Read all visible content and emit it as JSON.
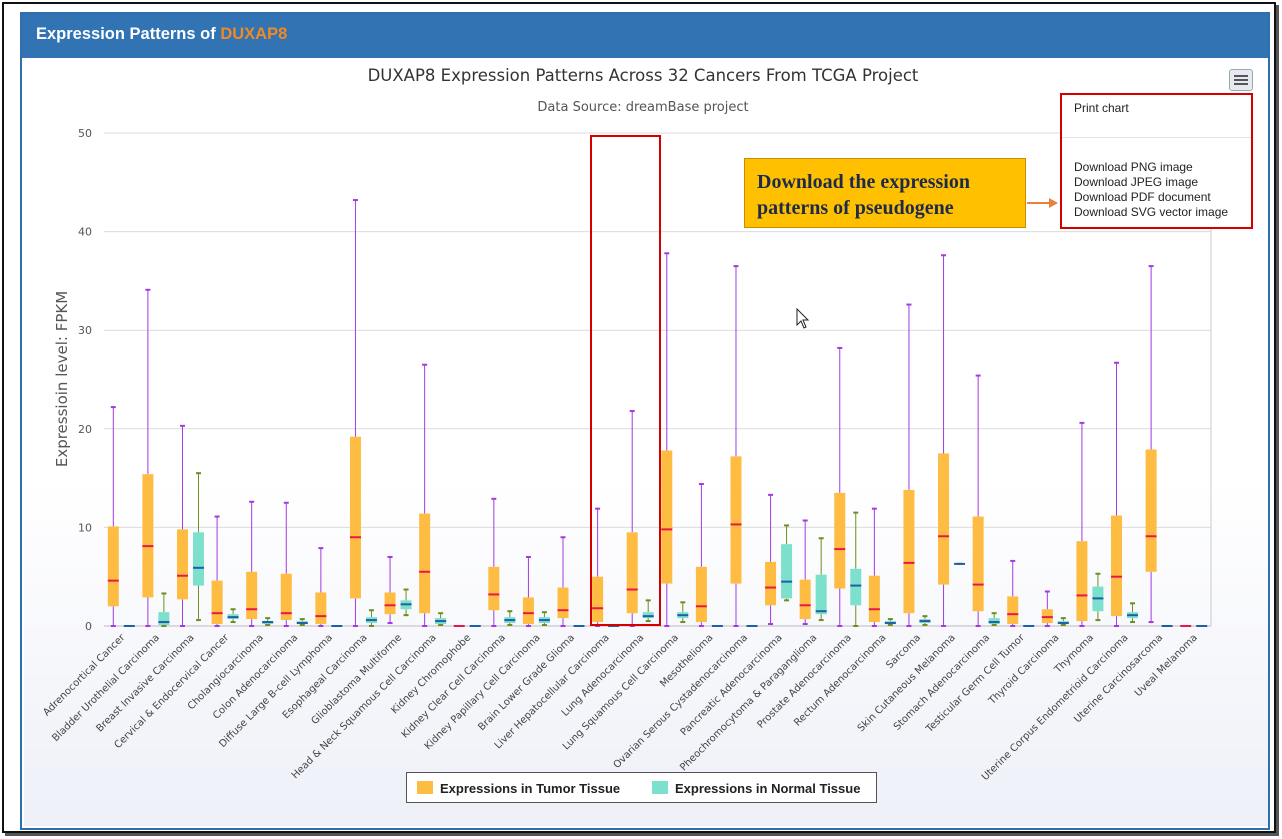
{
  "panel": {
    "title_prefix": "Expression Patterns of ",
    "gene": "DUXAP8"
  },
  "colors": {
    "header": "#3173b3",
    "tumor": "#ffbc42",
    "normal": "#7de0cc",
    "whisker": "#a23ae0",
    "tumor_median": "#e8174a",
    "normal_median": "#1f5fa8",
    "highlight": "#d40000",
    "callout": "#ffc000"
  },
  "menu": {
    "icon": "hamburger-menu-icon",
    "print": "Print chart",
    "png": "Download PNG image",
    "jpeg": "Download JPEG image",
    "pdf": "Download PDF document",
    "svg": "Download SVG vector image"
  },
  "callout": {
    "line1": "Download the expression",
    "line2": "patterns of pseudogene"
  },
  "chart_data": {
    "type": "boxplot",
    "title": "DUXAP8 Expression Patterns Across 32 Cancers From TCGA Project",
    "subtitle": "Data Source: dreamBase project",
    "ylabel": "Expressioin level: FPKM",
    "ylim": [
      0,
      50
    ],
    "yticks": [
      0,
      10,
      20,
      30,
      40,
      50
    ],
    "grid": true,
    "legend_placement": "bottom",
    "highlighted_category": "Lung Adenocarcinoma",
    "categories": [
      "Adrenocortical Cancer",
      "Bladder Urothelial Carcinoma",
      "Breast Invasive Carcinoma",
      "Cervical & Endocervical Cancer",
      "Cholangiocarcinoma",
      "Colon Adenocarcinoma",
      "Diffuse Large B-cell Lymphoma",
      "Esophageal Carcinoma",
      "Glioblastoma Multiforme",
      "Head & Neck Squamous Cell Carcinoma",
      "Kidney Chromophobe",
      "Kidney Clear Cell Carcinoma",
      "Kidney Papillary Cell Carcinoma",
      "Brain Lower Grade Glioma",
      "Liver Hepatocellular Carcinoma",
      "Lung Adenocarcinoma",
      "Lung Squamous Cell Carcinoma",
      "Mesothelioma",
      "Ovarian Serous Cystadenocarcinoma",
      "Pancreatic Adenocarcinoma",
      "Pheochromocytoma & Paraganglioma",
      "Prostate Adenocarcinoma",
      "Rectum Adenocarcinoma",
      "Sarcoma",
      "Skin Cutaneous Melanoma",
      "Stomach Adenocarcinoma",
      "Testicular Germ Cell Tumor",
      "Thyroid Carcinoma",
      "Thymoma",
      "Uterine Corpus Endometrioid Carcinoma",
      "Uterine Carcinosarcoma",
      "Uveal Melanoma"
    ],
    "series": [
      {
        "name": "Expressions in Tumor Tissue",
        "boxes": [
          [
            0,
            2,
            4.6,
            10.1,
            22.2
          ],
          [
            0,
            2.9,
            8.1,
            15.4,
            34.1
          ],
          [
            0,
            2.7,
            5.1,
            9.8,
            20.3
          ],
          [
            0,
            0.2,
            1.3,
            4.6,
            11.1
          ],
          [
            0,
            0.7,
            1.7,
            5.5,
            12.6
          ],
          [
            0,
            0.6,
            1.3,
            5.3,
            12.5
          ],
          [
            0,
            0.2,
            1,
            3.4,
            7.9
          ],
          [
            0,
            2.8,
            9,
            19.2,
            43.2
          ],
          [
            0.3,
            1.2,
            2.1,
            3.4,
            7
          ],
          [
            0,
            1.3,
            5.5,
            11.4,
            26.5
          ],
          [
            0,
            0,
            0,
            0,
            0
          ],
          [
            0,
            1.6,
            3.2,
            6,
            12.9
          ],
          [
            0,
            0.2,
            1.3,
            2.9,
            7
          ],
          [
            0,
            0.8,
            1.6,
            3.9,
            9
          ],
          [
            0,
            0.4,
            1.8,
            5,
            11.9
          ],
          [
            0,
            1.3,
            3.7,
            9.5,
            21.8
          ],
          [
            0,
            4.3,
            9.8,
            17.8,
            37.8
          ],
          [
            0,
            0.4,
            2,
            6,
            14.4
          ],
          [
            0,
            4.3,
            10.3,
            17.2,
            36.5
          ],
          [
            0.2,
            2.1,
            3.9,
            6.5,
            13.3
          ],
          [
            0.2,
            0.7,
            2.1,
            4.7,
            10.7
          ],
          [
            0,
            3.8,
            7.8,
            13.5,
            28.2
          ],
          [
            0,
            0.4,
            1.7,
            5.1,
            11.9
          ],
          [
            0,
            1.3,
            6.4,
            13.8,
            32.6
          ],
          [
            0,
            4.2,
            9.1,
            17.5,
            37.6
          ],
          [
            0,
            1.5,
            4.2,
            11.1,
            25.4
          ],
          [
            0,
            0.2,
            1.2,
            3,
            6.6
          ],
          [
            0,
            0.3,
            0.9,
            1.7,
            3.5
          ],
          [
            0,
            0.5,
            3.1,
            8.6,
            20.6
          ],
          [
            0,
            1,
            5,
            11.2,
            26.7
          ],
          [
            0.4,
            5.5,
            9.1,
            17.9,
            36.5
          ],
          [
            0,
            0,
            0,
            0,
            0
          ]
        ]
      },
      {
        "name": "Expressions in Normal Tissue",
        "boxes": [
          [
            0,
            0,
            0,
            0,
            0
          ],
          [
            0,
            0.1,
            0.4,
            1.4,
            3.3
          ],
          [
            0.6,
            4.1,
            5.9,
            9.5,
            15.5
          ],
          [
            0.4,
            0.7,
            0.9,
            1.2,
            1.7
          ],
          [
            0.1,
            0.2,
            0.4,
            0.5,
            0.8
          ],
          [
            0.1,
            0.2,
            0.3,
            0.5,
            0.7
          ],
          [
            0,
            0,
            0,
            0,
            0
          ],
          [
            0,
            0.3,
            0.6,
            0.9,
            1.6
          ],
          [
            1.1,
            1.7,
            2.2,
            2.6,
            3.7
          ],
          [
            0.1,
            0.2,
            0.5,
            0.8,
            1.3
          ],
          [
            0,
            0,
            0,
            0,
            0
          ],
          [
            0.1,
            0.3,
            0.6,
            0.9,
            1.5
          ],
          [
            0.1,
            0.3,
            0.6,
            0.9,
            1.4
          ],
          [
            0,
            0,
            0,
            0,
            0
          ],
          [
            0,
            0,
            0,
            0,
            0
          ],
          [
            0.5,
            0.8,
            1,
            1.4,
            2.6
          ],
          [
            0.4,
            0.8,
            1.1,
            1.4,
            2.4
          ],
          [
            0,
            0,
            0,
            0,
            0
          ],
          [
            0,
            0,
            0,
            0,
            0
          ],
          [
            2.6,
            2.8,
            4.5,
            8.3,
            10.2
          ],
          [
            0.6,
            1.2,
            1.5,
            5.2,
            8.9
          ],
          [
            0,
            2.1,
            4.1,
            5.8,
            11.5
          ],
          [
            0.1,
            0.2,
            0.3,
            0.5,
            0.7
          ],
          [
            0.1,
            0.3,
            0.5,
            0.7,
            1
          ],
          [
            6.3,
            6.3,
            6.3,
            6.3,
            6.3
          ],
          [
            0.1,
            0.2,
            0.4,
            0.8,
            1.3
          ],
          [
            0,
            0,
            0,
            0,
            0
          ],
          [
            0.1,
            0.2,
            0.3,
            0.5,
            0.8
          ],
          [
            0.6,
            1.5,
            2.8,
            4,
            5.3
          ],
          [
            0.4,
            0.8,
            1.1,
            1.4,
            2.3
          ],
          [
            0,
            0,
            0,
            0,
            0
          ],
          [
            0,
            0,
            0,
            0,
            0
          ]
        ]
      }
    ]
  },
  "legend": {
    "tumor": "Expressions in Tumor Tissue",
    "normal": "Expressions in Normal Tissue"
  }
}
